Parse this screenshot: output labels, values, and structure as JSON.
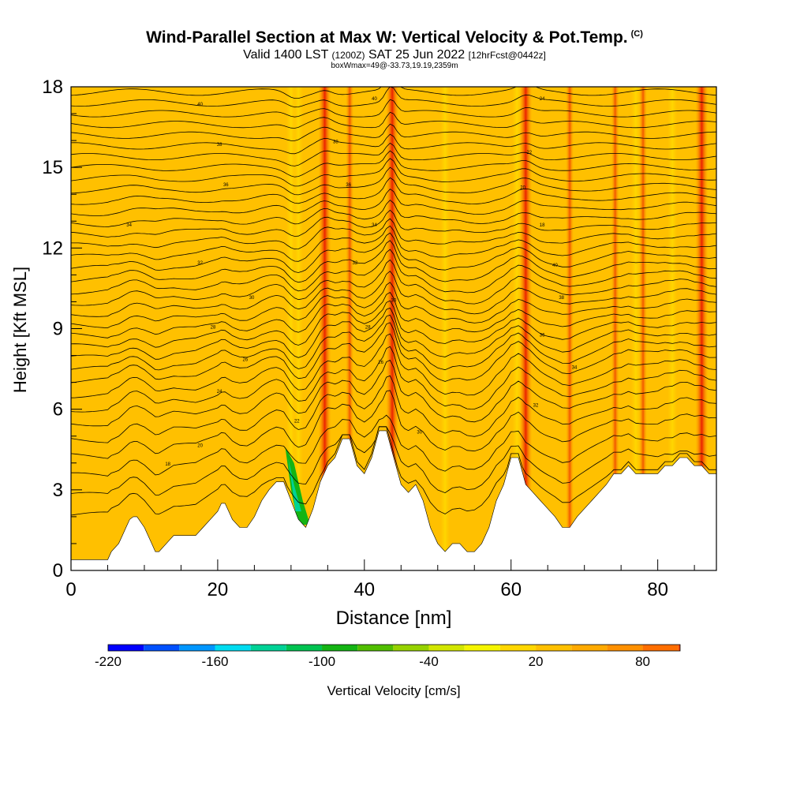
{
  "header": {
    "title": "Wind-Parallel Section at Max W: Vertical Velocity & Pot.Temp.",
    "copyright_mark": "(C)",
    "subtitle_a": "Valid 1400 LST",
    "subtitle_b": "(1200Z)",
    "subtitle_c": "SAT 25 Jun 2022",
    "subtitle_d": "[12hrFcst@0442z]",
    "subtitle_2": "boxWmax=49@-33.73,19.19,2359m"
  },
  "chart_data": {
    "type": "heatmap",
    "xlabel": "Distance [nm]",
    "ylabel": "Height [Kft MSL]",
    "xlim": [
      0,
      88
    ],
    "ylim": [
      0,
      18
    ],
    "x_ticks": [
      "0",
      "20",
      "40",
      "60",
      "80"
    ],
    "x_tick_values": [
      0,
      20,
      40,
      60,
      80
    ],
    "y_ticks": [
      "0",
      "3",
      "6",
      "9",
      "12",
      "15",
      "18"
    ],
    "y_tick_values": [
      0,
      3,
      6,
      9,
      12,
      15,
      18
    ],
    "colorbar": {
      "label": "Vertical Velocity [cm/s]",
      "tick_labels": [
        "-220",
        "-160",
        "-100",
        "-40",
        "20",
        "80"
      ],
      "tick_values": [
        -220,
        -160,
        -100,
        -40,
        20,
        80
      ],
      "min": -220,
      "max": 100,
      "step": 20,
      "colors": [
        "#0000ff",
        "#0050ff",
        "#0096ff",
        "#00dcf0",
        "#00d296",
        "#00c350",
        "#14b414",
        "#50be00",
        "#96d200",
        "#d2e600",
        "#f5f500",
        "#ffd700",
        "#ffc000",
        "#ffaa00",
        "#ff9000",
        "#ff6e00",
        "#ff4600",
        "#f00a00",
        "#b40032"
      ]
    },
    "background_fill": "#ffc000",
    "terrain_profile_kft": {
      "x": [
        0,
        5,
        5.5,
        6.5,
        7,
        7.5,
        8,
        8.5,
        9,
        10,
        11,
        11.5,
        12,
        13,
        14,
        15,
        16,
        17,
        18,
        19,
        20,
        20.5,
        21,
        21.5,
        22,
        23,
        24,
        25,
        26,
        27,
        28,
        29,
        30,
        31,
        32,
        33,
        34,
        35,
        36,
        37,
        38,
        39,
        40,
        41,
        42,
        43,
        44,
        45,
        46,
        47,
        48,
        49,
        50,
        51,
        52,
        53,
        54,
        55,
        56,
        57,
        58,
        59,
        60,
        61,
        62,
        63,
        64,
        65,
        66,
        67,
        68,
        69,
        70,
        71,
        72,
        73,
        74,
        75,
        76,
        77,
        78,
        79,
        80,
        81,
        82,
        83,
        84,
        85,
        86,
        87,
        88
      ],
      "y": [
        0.4,
        0.4,
        0.7,
        1.0,
        1.3,
        1.6,
        1.9,
        2.0,
        2.0,
        1.6,
        1.0,
        0.7,
        0.7,
        1.0,
        1.3,
        1.3,
        1.3,
        1.3,
        1.6,
        1.9,
        2.2,
        2.5,
        2.5,
        2.2,
        1.9,
        1.6,
        1.6,
        2.0,
        2.6,
        3.0,
        3.3,
        3.3,
        2.6,
        1.9,
        1.6,
        2.3,
        3.3,
        3.9,
        4.2,
        4.9,
        4.9,
        3.9,
        3.6,
        4.2,
        5.2,
        5.2,
        4.2,
        3.2,
        2.9,
        3.2,
        2.6,
        1.6,
        1.0,
        0.7,
        1.0,
        1.0,
        0.7,
        0.7,
        1.0,
        1.6,
        2.6,
        3.2,
        4.2,
        4.2,
        3.2,
        2.9,
        2.6,
        2.3,
        2.0,
        1.6,
        1.6,
        2.0,
        2.3,
        2.6,
        2.9,
        3.2,
        3.6,
        3.6,
        3.9,
        3.6,
        3.6,
        3.6,
        3.6,
        3.9,
        3.9,
        4.2,
        4.2,
        3.9,
        3.9,
        3.6,
        3.6
      ]
    },
    "isentrope_levels_kft": [
      2.6,
      3.3,
      4.0,
      4.7,
      5.3,
      5.9,
      6.4,
      6.9,
      7.4,
      7.8,
      8.2,
      8.6,
      9.0,
      9.4,
      9.8,
      10.2,
      10.6,
      11.0,
      11.4,
      11.8,
      12.2,
      12.6,
      13.0,
      13.4,
      13.8,
      14.2,
      14.6,
      15.0,
      15.4,
      15.8,
      16.2,
      16.6,
      17.0,
      17.4,
      17.8
    ],
    "updraft_columns": [
      {
        "x": 34.6,
        "w": 80
      },
      {
        "x": 43.8,
        "w": 80
      },
      {
        "x": 38.0,
        "w": 40
      },
      {
        "x": 62.0,
        "w": 60
      },
      {
        "x": 68.0,
        "w": 40
      },
      {
        "x": 74.2,
        "w": 40
      },
      {
        "x": 78.0,
        "w": 40
      },
      {
        "x": 86.0,
        "w": 60
      }
    ],
    "downdraft_columns": [
      {
        "x": 30.0,
        "w": -120
      },
      {
        "x": 31.0,
        "w": -100
      },
      {
        "x": 51.0,
        "w": -40
      },
      {
        "x": 60.8,
        "w": -40
      },
      {
        "x": 77.0,
        "w": -40
      },
      {
        "x": 82.0,
        "w": -20
      }
    ],
    "contour_labels": [
      "40",
      "38",
      "36",
      "34",
      "32",
      "30",
      "28",
      "26",
      "24",
      "22",
      "20",
      "18"
    ]
  }
}
